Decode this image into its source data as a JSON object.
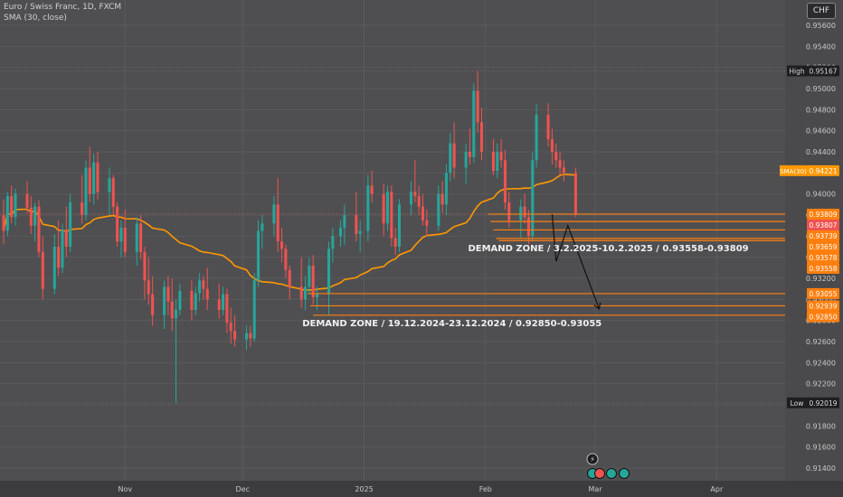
{
  "header": {
    "symbol_line": "Euro / Swiss Franc, 1D, FXCM",
    "indicator_line": "SMA (30, close)",
    "currency": "CHF"
  },
  "chart_data": {
    "type": "candlestick",
    "y_ticks": [
      "0.95600",
      "0.95400",
      "0.95200",
      "0.95000",
      "0.94800",
      "0.94600",
      "0.94400",
      "0.94200",
      "0.94000",
      "0.93800",
      "0.93600",
      "0.93400",
      "0.93200",
      "0.93000",
      "0.92800",
      "0.92600",
      "0.92400",
      "0.92200",
      "0.92000",
      "0.91800",
      "0.91600",
      "0.91400"
    ],
    "y_tick_values": [
      0.956,
      0.954,
      0.952,
      0.95,
      0.948,
      0.946,
      0.944,
      0.942,
      0.94,
      0.938,
      0.936,
      0.934,
      0.932,
      0.93,
      0.928,
      0.926,
      0.924,
      0.922,
      0.92,
      0.918,
      0.916,
      0.914
    ],
    "x_ticks": [
      {
        "label": "Nov",
        "date": "2024-11-01"
      },
      {
        "label": "Dec",
        "date": "2024-12-01"
      },
      {
        "label": "2025",
        "date": "2025-01-01"
      },
      {
        "label": "Feb",
        "date": "2025-02-01"
      },
      {
        "label": "Mar",
        "date": "2025-03-01"
      },
      {
        "label": "Apr",
        "date": "2025-04-01"
      }
    ],
    "x_range": [
      "2024-10-01",
      "2025-04-12"
    ],
    "y_range": [
      0.9128,
      0.9584
    ],
    "grid": true,
    "colors": {
      "up": "#26a69a",
      "down": "#ef5350",
      "sma": "#ff9800",
      "zone": "#ff7f0e",
      "high_low_label": "#1e1e20"
    },
    "high": {
      "label": "High",
      "value": "0.95167"
    },
    "low": {
      "label": "Low",
      "value": "0.92019"
    },
    "sma": {
      "label": "SMA(30)",
      "value": "0.94221"
    },
    "price_labels": [
      {
        "value": "0.93809",
        "color": "#ff7f0e"
      },
      {
        "value": "0.93807",
        "color": "#ef5350"
      },
      {
        "value": "0.93739",
        "color": "#ff7f0e"
      },
      {
        "value": "0.93659",
        "color": "#ff7f0e"
      },
      {
        "value": "0.93578",
        "color": "#ff7f0e"
      },
      {
        "value": "0.93558",
        "color": "#ff7f0e"
      },
      {
        "value": "0.93055",
        "color": "#ff7f0e"
      },
      {
        "value": "0.92939",
        "color": "#ff7f0e"
      },
      {
        "value": "0.92850",
        "color": "#ff7f0e"
      }
    ],
    "zones": [
      {
        "text": "DEMAND ZONE  /  3.2.2025-10.2.2025  /  0.93558-0.93809",
        "start": "2025-02-03",
        "lines": [
          0.93809,
          0.93739,
          0.93659,
          0.93578,
          0.93558
        ]
      },
      {
        "text": "DEMAND ZONE  /  19.12.2024-23.12.2024  /  0.92850-0.93055",
        "start": "2024-12-19",
        "lines": [
          0.93055,
          0.92939,
          0.9285
        ]
      }
    ],
    "projection": [
      {
        "date": "2025-02-18",
        "value": 0.93807
      },
      {
        "date": "2025-02-19",
        "value": 0.9336
      },
      {
        "date": "2025-02-22",
        "value": 0.937
      },
      {
        "date": "2025-03-02",
        "value": 0.9291
      }
    ],
    "candles": [
      {
        "d": "2024-10-01",
        "o": 0.938,
        "h": 0.9395,
        "l": 0.9352,
        "c": 0.9365
      },
      {
        "d": "2024-10-02",
        "o": 0.9365,
        "h": 0.9402,
        "l": 0.936,
        "c": 0.9398
      },
      {
        "d": "2024-10-03",
        "o": 0.9398,
        "h": 0.9408,
        "l": 0.9372,
        "c": 0.9378
      },
      {
        "d": "2024-10-04",
        "o": 0.9378,
        "h": 0.9405,
        "l": 0.937,
        "c": 0.94
      },
      {
        "d": "2024-10-07",
        "o": 0.94,
        "h": 0.9412,
        "l": 0.9382,
        "c": 0.9387
      },
      {
        "d": "2024-10-08",
        "o": 0.9387,
        "h": 0.9398,
        "l": 0.9362,
        "c": 0.937
      },
      {
        "d": "2024-10-09",
        "o": 0.937,
        "h": 0.9392,
        "l": 0.9355,
        "c": 0.9388
      },
      {
        "d": "2024-10-10",
        "o": 0.9388,
        "h": 0.9394,
        "l": 0.934,
        "c": 0.9345
      },
      {
        "d": "2024-10-11",
        "o": 0.9345,
        "h": 0.936,
        "l": 0.93,
        "c": 0.931
      },
      {
        "d": "2024-10-14",
        "o": 0.931,
        "h": 0.9362,
        "l": 0.9305,
        "c": 0.935
      },
      {
        "d": "2024-10-15",
        "o": 0.935,
        "h": 0.9375,
        "l": 0.9322,
        "c": 0.933
      },
      {
        "d": "2024-10-16",
        "o": 0.933,
        "h": 0.9372,
        "l": 0.9325,
        "c": 0.9366
      },
      {
        "d": "2024-10-17",
        "o": 0.9366,
        "h": 0.9388,
        "l": 0.934,
        "c": 0.935
      },
      {
        "d": "2024-10-18",
        "o": 0.935,
        "h": 0.94,
        "l": 0.9345,
        "c": 0.9392
      },
      {
        "d": "2024-10-21",
        "o": 0.9392,
        "h": 0.9418,
        "l": 0.9372,
        "c": 0.938
      },
      {
        "d": "2024-10-22",
        "o": 0.938,
        "h": 0.9432,
        "l": 0.9375,
        "c": 0.9425
      },
      {
        "d": "2024-10-23",
        "o": 0.9425,
        "h": 0.9445,
        "l": 0.9392,
        "c": 0.94
      },
      {
        "d": "2024-10-24",
        "o": 0.94,
        "h": 0.9438,
        "l": 0.939,
        "c": 0.943
      },
      {
        "d": "2024-10-25",
        "o": 0.943,
        "h": 0.944,
        "l": 0.9395,
        "c": 0.9402
      },
      {
        "d": "2024-10-28",
        "o": 0.9402,
        "h": 0.9425,
        "l": 0.938,
        "c": 0.9415
      },
      {
        "d": "2024-10-29",
        "o": 0.9415,
        "h": 0.9418,
        "l": 0.938,
        "c": 0.9388
      },
      {
        "d": "2024-10-30",
        "o": 0.9388,
        "h": 0.9392,
        "l": 0.935,
        "c": 0.9355
      },
      {
        "d": "2024-10-31",
        "o": 0.9355,
        "h": 0.9375,
        "l": 0.934,
        "c": 0.9368
      },
      {
        "d": "2024-11-01",
        "o": 0.9368,
        "h": 0.9385,
        "l": 0.934,
        "c": 0.9345
      },
      {
        "d": "2024-11-04",
        "o": 0.9345,
        "h": 0.9378,
        "l": 0.9332,
        "c": 0.9372
      },
      {
        "d": "2024-11-05",
        "o": 0.9372,
        "h": 0.938,
        "l": 0.9338,
        "c": 0.9345
      },
      {
        "d": "2024-11-06",
        "o": 0.9345,
        "h": 0.935,
        "l": 0.93,
        "c": 0.9318
      },
      {
        "d": "2024-11-07",
        "o": 0.9318,
        "h": 0.934,
        "l": 0.9295,
        "c": 0.9305
      },
      {
        "d": "2024-11-08",
        "o": 0.9305,
        "h": 0.9322,
        "l": 0.9275,
        "c": 0.9285
      },
      {
        "d": "2024-11-11",
        "o": 0.9285,
        "h": 0.9318,
        "l": 0.9272,
        "c": 0.9312
      },
      {
        "d": "2024-11-12",
        "o": 0.9312,
        "h": 0.9322,
        "l": 0.9285,
        "c": 0.9298
      },
      {
        "d": "2024-11-13",
        "o": 0.9298,
        "h": 0.932,
        "l": 0.927,
        "c": 0.9282
      },
      {
        "d": "2024-11-14",
        "o": 0.9282,
        "h": 0.93,
        "l": 0.9202,
        "c": 0.929
      },
      {
        "d": "2024-11-15",
        "o": 0.929,
        "h": 0.9315,
        "l": 0.9285,
        "c": 0.9308
      },
      {
        "d": "2024-11-18",
        "o": 0.9308,
        "h": 0.9318,
        "l": 0.928,
        "c": 0.929
      },
      {
        "d": "2024-11-19",
        "o": 0.929,
        "h": 0.9312,
        "l": 0.9285,
        "c": 0.9306
      },
      {
        "d": "2024-11-20",
        "o": 0.9306,
        "h": 0.9325,
        "l": 0.9298,
        "c": 0.9318
      },
      {
        "d": "2024-11-21",
        "o": 0.9318,
        "h": 0.9322,
        "l": 0.93,
        "c": 0.931
      },
      {
        "d": "2024-11-22",
        "o": 0.931,
        "h": 0.933,
        "l": 0.929,
        "c": 0.93
      },
      {
        "d": "2024-11-25",
        "o": 0.93,
        "h": 0.9315,
        "l": 0.9282,
        "c": 0.929
      },
      {
        "d": "2024-11-26",
        "o": 0.929,
        "h": 0.9312,
        "l": 0.9285,
        "c": 0.9305
      },
      {
        "d": "2024-11-27",
        "o": 0.9305,
        "h": 0.931,
        "l": 0.9268,
        "c": 0.9278
      },
      {
        "d": "2024-11-28",
        "o": 0.9278,
        "h": 0.9292,
        "l": 0.9258,
        "c": 0.927
      },
      {
        "d": "2024-11-29",
        "o": 0.927,
        "h": 0.9285,
        "l": 0.9255,
        "c": 0.9262
      },
      {
        "d": "2024-12-02",
        "o": 0.9262,
        "h": 0.9275,
        "l": 0.9252,
        "c": 0.9268
      },
      {
        "d": "2024-12-03",
        "o": 0.9268,
        "h": 0.9275,
        "l": 0.9255,
        "c": 0.9263
      },
      {
        "d": "2024-12-04",
        "o": 0.9263,
        "h": 0.9325,
        "l": 0.926,
        "c": 0.9318
      },
      {
        "d": "2024-12-05",
        "o": 0.9318,
        "h": 0.9375,
        "l": 0.9312,
        "c": 0.9365
      },
      {
        "d": "2024-12-06",
        "o": 0.9365,
        "h": 0.938,
        "l": 0.9348,
        "c": 0.9372
      },
      {
        "d": "2024-12-09",
        "o": 0.9372,
        "h": 0.9398,
        "l": 0.936,
        "c": 0.939
      },
      {
        "d": "2024-12-10",
        "o": 0.939,
        "h": 0.9415,
        "l": 0.9345,
        "c": 0.9355
      },
      {
        "d": "2024-12-11",
        "o": 0.9355,
        "h": 0.9368,
        "l": 0.9335,
        "c": 0.9348
      },
      {
        "d": "2024-12-12",
        "o": 0.9348,
        "h": 0.9352,
        "l": 0.932,
        "c": 0.9328
      },
      {
        "d": "2024-12-13",
        "o": 0.9328,
        "h": 0.9332,
        "l": 0.93,
        "c": 0.9312
      },
      {
        "d": "2024-12-16",
        "o": 0.9312,
        "h": 0.934,
        "l": 0.9292,
        "c": 0.93
      },
      {
        "d": "2024-12-17",
        "o": 0.93,
        "h": 0.9322,
        "l": 0.929,
        "c": 0.9312
      },
      {
        "d": "2024-12-18",
        "o": 0.9312,
        "h": 0.934,
        "l": 0.9305,
        "c": 0.9332
      },
      {
        "d": "2024-12-19",
        "o": 0.9332,
        "h": 0.9342,
        "l": 0.9295,
        "c": 0.9302
      },
      {
        "d": "2024-12-20",
        "o": 0.9302,
        "h": 0.9312,
        "l": 0.929,
        "c": 0.9305
      },
      {
        "d": "2024-12-23",
        "o": 0.9305,
        "h": 0.9355,
        "l": 0.9285,
        "c": 0.9348
      },
      {
        "d": "2024-12-24",
        "o": 0.9348,
        "h": 0.9368,
        "l": 0.9335,
        "c": 0.936
      },
      {
        "d": "2024-12-26",
        "o": 0.936,
        "h": 0.9375,
        "l": 0.935,
        "c": 0.9368
      },
      {
        "d": "2024-12-27",
        "o": 0.9368,
        "h": 0.939,
        "l": 0.9352,
        "c": 0.938
      },
      {
        "d": "2024-12-30",
        "o": 0.938,
        "h": 0.9402,
        "l": 0.9355,
        "c": 0.9362
      },
      {
        "d": "2024-12-31",
        "o": 0.9362,
        "h": 0.9375,
        "l": 0.9345,
        "c": 0.9365
      },
      {
        "d": "2025-01-02",
        "o": 0.9365,
        "h": 0.9418,
        "l": 0.9355,
        "c": 0.9408
      },
      {
        "d": "2025-01-03",
        "o": 0.9408,
        "h": 0.9422,
        "l": 0.9392,
        "c": 0.94
      },
      {
        "d": "2025-01-06",
        "o": 0.94,
        "h": 0.941,
        "l": 0.936,
        "c": 0.9372
      },
      {
        "d": "2025-01-07",
        "o": 0.9372,
        "h": 0.9408,
        "l": 0.9365,
        "c": 0.9402
      },
      {
        "d": "2025-01-08",
        "o": 0.9402,
        "h": 0.9408,
        "l": 0.935,
        "c": 0.9358
      },
      {
        "d": "2025-01-09",
        "o": 0.9358,
        "h": 0.9368,
        "l": 0.9342,
        "c": 0.935
      },
      {
        "d": "2025-01-10",
        "o": 0.935,
        "h": 0.9395,
        "l": 0.9345,
        "c": 0.939
      },
      {
        "d": "2025-01-13",
        "o": 0.939,
        "h": 0.9412,
        "l": 0.938,
        "c": 0.9402
      },
      {
        "d": "2025-01-14",
        "o": 0.9402,
        "h": 0.9432,
        "l": 0.9392,
        "c": 0.9398
      },
      {
        "d": "2025-01-15",
        "o": 0.9398,
        "h": 0.9408,
        "l": 0.938,
        "c": 0.9388
      },
      {
        "d": "2025-01-16",
        "o": 0.9388,
        "h": 0.94,
        "l": 0.937,
        "c": 0.9375
      },
      {
        "d": "2025-01-17",
        "o": 0.9375,
        "h": 0.9385,
        "l": 0.936,
        "c": 0.937
      },
      {
        "d": "2025-01-20",
        "o": 0.937,
        "h": 0.9408,
        "l": 0.9365,
        "c": 0.94
      },
      {
        "d": "2025-01-21",
        "o": 0.94,
        "h": 0.9412,
        "l": 0.9382,
        "c": 0.939
      },
      {
        "d": "2025-01-22",
        "o": 0.939,
        "h": 0.9428,
        "l": 0.938,
        "c": 0.942
      },
      {
        "d": "2025-01-23",
        "o": 0.942,
        "h": 0.9458,
        "l": 0.9412,
        "c": 0.9448
      },
      {
        "d": "2025-01-24",
        "o": 0.9448,
        "h": 0.9468,
        "l": 0.9415,
        "c": 0.9425
      },
      {
        "d": "2025-01-27",
        "o": 0.9425,
        "h": 0.9448,
        "l": 0.941,
        "c": 0.944
      },
      {
        "d": "2025-01-28",
        "o": 0.944,
        "h": 0.9462,
        "l": 0.9428,
        "c": 0.9435
      },
      {
        "d": "2025-01-29",
        "o": 0.9435,
        "h": 0.9505,
        "l": 0.943,
        "c": 0.9498
      },
      {
        "d": "2025-01-30",
        "o": 0.9498,
        "h": 0.9517,
        "l": 0.9458,
        "c": 0.9468
      },
      {
        "d": "2025-01-31",
        "o": 0.9468,
        "h": 0.9482,
        "l": 0.9432,
        "c": 0.944
      },
      {
        "d": "2025-02-03",
        "o": 0.944,
        "h": 0.9452,
        "l": 0.9418,
        "c": 0.9422
      },
      {
        "d": "2025-02-04",
        "o": 0.9422,
        "h": 0.9448,
        "l": 0.9415,
        "c": 0.944
      },
      {
        "d": "2025-02-05",
        "o": 0.944,
        "h": 0.9452,
        "l": 0.9425,
        "c": 0.9432
      },
      {
        "d": "2025-02-06",
        "o": 0.9432,
        "h": 0.9442,
        "l": 0.9385,
        "c": 0.9392
      },
      {
        "d": "2025-02-07",
        "o": 0.9392,
        "h": 0.9402,
        "l": 0.9368,
        "c": 0.9375
      },
      {
        "d": "2025-02-10",
        "o": 0.9375,
        "h": 0.9395,
        "l": 0.9358,
        "c": 0.9388
      },
      {
        "d": "2025-02-11",
        "o": 0.9388,
        "h": 0.94,
        "l": 0.9372,
        "c": 0.9378
      },
      {
        "d": "2025-02-12",
        "o": 0.9378,
        "h": 0.9385,
        "l": 0.9352,
        "c": 0.936
      },
      {
        "d": "2025-02-13",
        "o": 0.936,
        "h": 0.944,
        "l": 0.9355,
        "c": 0.9432
      },
      {
        "d": "2025-02-14",
        "o": 0.9432,
        "h": 0.9485,
        "l": 0.9425,
        "c": 0.9475
      },
      {
        "d": "2025-02-17",
        "o": 0.9475,
        "h": 0.9486,
        "l": 0.9445,
        "c": 0.9452
      },
      {
        "d": "2025-02-18",
        "o": 0.9452,
        "h": 0.9462,
        "l": 0.9428,
        "c": 0.944
      },
      {
        "d": "2025-02-19",
        "o": 0.944,
        "h": 0.9448,
        "l": 0.9425,
        "c": 0.9432
      },
      {
        "d": "2025-02-20",
        "o": 0.9432,
        "h": 0.944,
        "l": 0.9418,
        "c": 0.9425
      },
      {
        "d": "2025-02-21",
        "o": 0.9425,
        "h": 0.9432,
        "l": 0.9412,
        "c": 0.942
      },
      {
        "d": "2025-02-24",
        "o": 0.942,
        "h": 0.9425,
        "l": 0.9378,
        "c": 0.9381
      }
    ]
  }
}
